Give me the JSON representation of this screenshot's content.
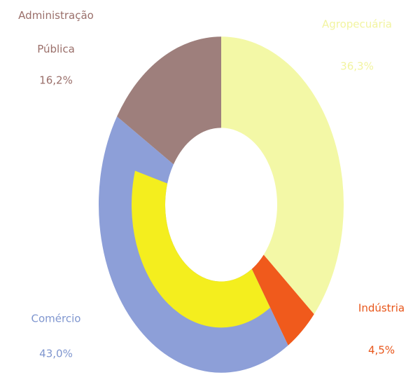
{
  "chart_data": {
    "type": "donut",
    "categories": [
      "Agropecuária",
      "Indústria",
      "Comércio",
      "Administração Pública"
    ],
    "values": [
      36.3,
      4.5,
      43.0,
      16.2
    ],
    "value_labels": [
      "36,3%",
      "4,5%",
      "43,0%",
      "16,2%"
    ],
    "colors": [
      "#f3f8a6",
      "#f05a1c",
      "#8d9fd8",
      "#9e7f7c"
    ],
    "label_colors": [
      "#f2f4a0",
      "#e8561a",
      "#7f96cf",
      "#9a6f6a"
    ]
  }
}
